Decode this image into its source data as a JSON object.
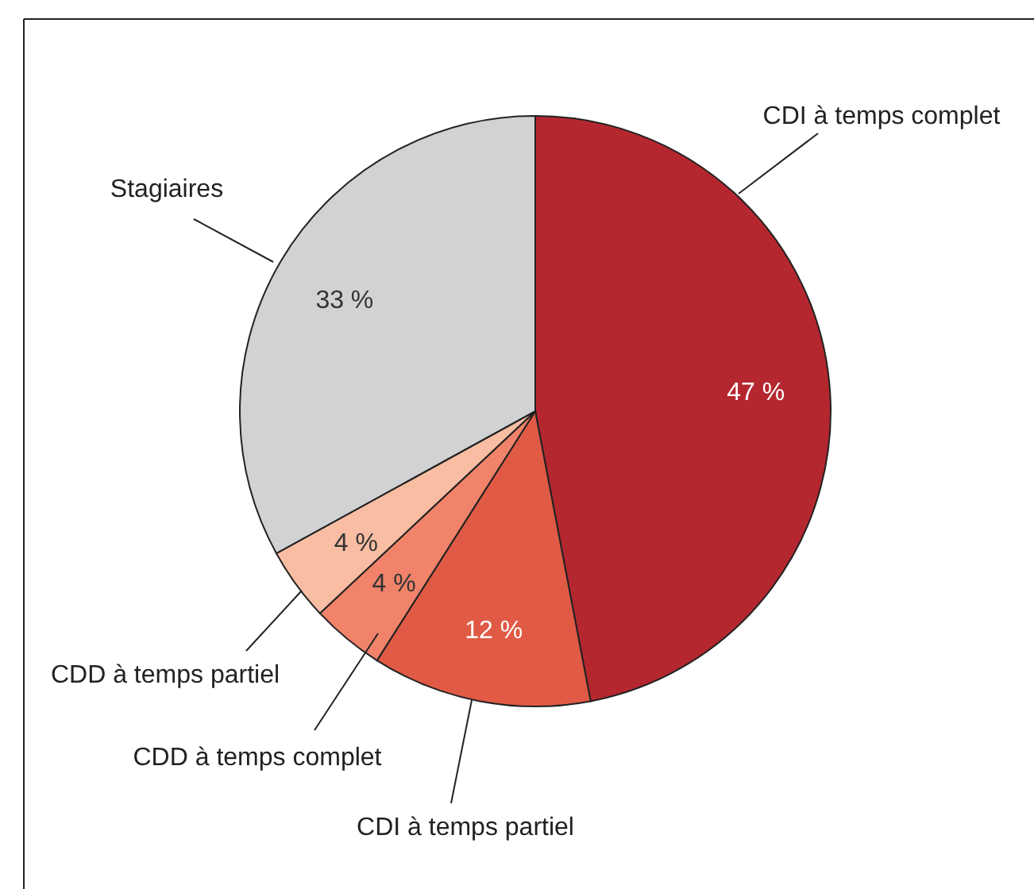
{
  "chart_data": {
    "type": "pie",
    "categories": [
      "CDI à temps complet",
      "CDI à temps partiel",
      "CDD à temps complet",
      "CDD à temps partiel",
      "Stagiaires"
    ],
    "values": [
      47,
      12,
      4,
      4,
      33
    ],
    "colors": [
      "#b5272f",
      "#e05a45",
      "#f0836a",
      "#f8bda3",
      "#d1d2d4"
    ],
    "value_labels": [
      "47 %",
      "12 %",
      "4 %",
      "4 %",
      "33 %"
    ]
  }
}
